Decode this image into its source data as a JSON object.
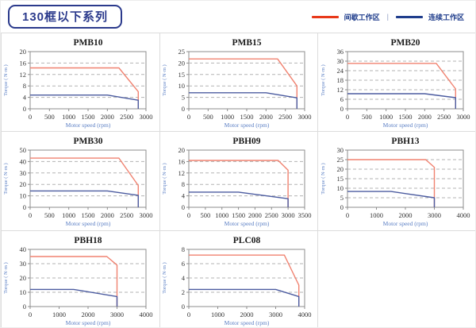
{
  "header": {
    "title": "130框以下系列"
  },
  "legend": {
    "intermittent_label": "间歇工作区",
    "separator": "|",
    "continuous_label": "连续工作区"
  },
  "colors": {
    "legend_red": "#e8391a",
    "legend_blue": "#1f3d8c",
    "chart_red": "#f08270",
    "chart_blue": "#4c5ca0",
    "grid_line": "#b3b3b3",
    "plot_border": "#8c8c8c",
    "axis_label_blue": "#5b7fc4",
    "tick_text": "#333333",
    "title_text": "#1a1a1a",
    "header_navy": "#2b3a8c",
    "cell_border": "#dcdcdc"
  },
  "chart_data": [
    {
      "type": "line",
      "title": "PMB10",
      "xlabel": "Motor speed (rpm)",
      "ylabel": "Torque ( N·m )",
      "xlim": [
        0,
        3000
      ],
      "xticks": [
        0,
        500,
        1000,
        1500,
        2000,
        2500,
        3000
      ],
      "ylim": [
        0,
        20
      ],
      "yticks": [
        0,
        4,
        8,
        12,
        16,
        20
      ],
      "series": [
        {
          "name": "间歇工作区",
          "color_key": "chart_red",
          "points": [
            [
              0,
              14.3
            ],
            [
              2300,
              14.3
            ],
            [
              2800,
              6
            ],
            [
              2800,
              0
            ]
          ]
        },
        {
          "name": "连续工作区",
          "color_key": "chart_blue",
          "points": [
            [
              0,
              4.8
            ],
            [
              2000,
              4.8
            ],
            [
              2800,
              3
            ],
            [
              2800,
              0
            ]
          ]
        }
      ]
    },
    {
      "type": "line",
      "title": "PMB15",
      "xlabel": "Motor speed (rpm)",
      "ylabel": "Torque ( N·m )",
      "xlim": [
        0,
        3000
      ],
      "xticks": [
        0,
        500,
        1000,
        1500,
        2000,
        2500,
        3000
      ],
      "ylim": [
        0,
        25
      ],
      "yticks": [
        0,
        5,
        10,
        15,
        20,
        25
      ],
      "series": [
        {
          "name": "间歇工作区",
          "color_key": "chart_red",
          "points": [
            [
              0,
              21.8
            ],
            [
              2300,
              21.8
            ],
            [
              2800,
              10
            ],
            [
              2800,
              0
            ]
          ]
        },
        {
          "name": "连续工作区",
          "color_key": "chart_blue",
          "points": [
            [
              0,
              7
            ],
            [
              2000,
              7
            ],
            [
              2800,
              4.8
            ],
            [
              2800,
              0
            ]
          ]
        }
      ]
    },
    {
      "type": "line",
      "title": "PMB20",
      "xlabel": "Motor speed (rpm)",
      "ylabel": "Torque ( N·m )",
      "xlim": [
        0,
        3000
      ],
      "xticks": [
        0,
        500,
        1000,
        1500,
        2000,
        2500,
        3000
      ],
      "ylim": [
        0,
        36
      ],
      "yticks": [
        0,
        6,
        12,
        18,
        24,
        30,
        36
      ],
      "series": [
        {
          "name": "间歇工作区",
          "color_key": "chart_red",
          "points": [
            [
              0,
              28.6
            ],
            [
              2300,
              28.6
            ],
            [
              2800,
              12.5
            ],
            [
              2800,
              0
            ]
          ]
        },
        {
          "name": "连续工作区",
          "color_key": "chart_blue",
          "points": [
            [
              0,
              9.5
            ],
            [
              2000,
              9.5
            ],
            [
              2800,
              7
            ],
            [
              2800,
              0
            ]
          ]
        }
      ]
    },
    {
      "type": "line",
      "title": "PMB30",
      "xlabel": "Motor speed (rpm)",
      "ylabel": "Torque ( N·m )",
      "xlim": [
        0,
        3000
      ],
      "xticks": [
        0,
        500,
        1000,
        1500,
        2000,
        2500,
        3000
      ],
      "ylim": [
        0,
        50
      ],
      "yticks": [
        0,
        10,
        20,
        30,
        40,
        50
      ],
      "series": [
        {
          "name": "间歇工作区",
          "color_key": "chart_red",
          "points": [
            [
              0,
              43
            ],
            [
              2300,
              43
            ],
            [
              2800,
              19
            ],
            [
              2800,
              0
            ]
          ]
        },
        {
          "name": "连续工作区",
          "color_key": "chart_blue",
          "points": [
            [
              0,
              14.3
            ],
            [
              2000,
              14.3
            ],
            [
              2800,
              10.5
            ],
            [
              2800,
              0
            ]
          ]
        }
      ]
    },
    {
      "type": "line",
      "title": "PBH09",
      "xlabel": "Motor speed (rpm)",
      "ylabel": "Torque ( N·m )",
      "xlim": [
        0,
        3500
      ],
      "xticks": [
        0,
        500,
        1000,
        1500,
        2000,
        2500,
        3000,
        3500
      ],
      "ylim": [
        0,
        20
      ],
      "yticks": [
        0,
        4,
        8,
        12,
        16,
        20
      ],
      "series": [
        {
          "name": "间歇工作区",
          "color_key": "chart_red",
          "points": [
            [
              0,
              16.4
            ],
            [
              2700,
              16.4
            ],
            [
              3000,
              13
            ],
            [
              3000,
              0
            ]
          ]
        },
        {
          "name": "连续工作区",
          "color_key": "chart_blue",
          "points": [
            [
              0,
              5.3
            ],
            [
              1500,
              5.3
            ],
            [
              3000,
              3
            ],
            [
              3000,
              0
            ]
          ]
        }
      ]
    },
    {
      "type": "line",
      "title": "PBH13",
      "xlabel": "Motor speed (rpm)",
      "ylabel": "Torque ( N·m )",
      "xlim": [
        0,
        4000
      ],
      "xticks": [
        0,
        1000,
        2000,
        3000,
        4000
      ],
      "ylim": [
        0,
        30
      ],
      "yticks": [
        0,
        5,
        10,
        15,
        20,
        25,
        30
      ],
      "series": [
        {
          "name": "间歇工作区",
          "color_key": "chart_red",
          "points": [
            [
              0,
              25
            ],
            [
              2700,
              25
            ],
            [
              3000,
              21
            ],
            [
              3000,
              0
            ]
          ]
        },
        {
          "name": "连续工作区",
          "color_key": "chart_blue",
          "points": [
            [
              0,
              8.3
            ],
            [
              1500,
              8.3
            ],
            [
              3000,
              5
            ],
            [
              3000,
              0
            ]
          ]
        }
      ]
    },
    {
      "type": "line",
      "title": "PBH18",
      "xlabel": "Motor speed (rpm)",
      "ylabel": "Torque ( N·m )",
      "xlim": [
        0,
        4000
      ],
      "xticks": [
        0,
        1000,
        2000,
        3000,
        4000
      ],
      "ylim": [
        0,
        40
      ],
      "yticks": [
        0,
        10,
        20,
        30,
        40
      ],
      "series": [
        {
          "name": "间歇工作区",
          "color_key": "chart_red",
          "points": [
            [
              0,
              35
            ],
            [
              2650,
              35
            ],
            [
              3000,
              29
            ],
            [
              3000,
              0
            ]
          ]
        },
        {
          "name": "连续工作区",
          "color_key": "chart_blue",
          "points": [
            [
              0,
              12
            ],
            [
              1500,
              12
            ],
            [
              3000,
              7
            ],
            [
              3000,
              0
            ]
          ]
        }
      ]
    },
    {
      "type": "line",
      "title": "PLC08",
      "xlabel": "Motor speed (rpm)",
      "ylabel": "Torque ( N·m )",
      "xlim": [
        0,
        4000
      ],
      "xticks": [
        0,
        1000,
        2000,
        3000,
        4000
      ],
      "ylim": [
        0,
        8
      ],
      "yticks": [
        0,
        2,
        4,
        6,
        8
      ],
      "series": [
        {
          "name": "间歇工作区",
          "color_key": "chart_red",
          "points": [
            [
              0,
              7.2
            ],
            [
              3300,
              7.2
            ],
            [
              3800,
              3
            ],
            [
              3800,
              0
            ]
          ]
        },
        {
          "name": "连续工作区",
          "color_key": "chart_blue",
          "points": [
            [
              0,
              2.4
            ],
            [
              3000,
              2.4
            ],
            [
              3800,
              1.4
            ],
            [
              3800,
              0
            ]
          ]
        }
      ]
    }
  ]
}
